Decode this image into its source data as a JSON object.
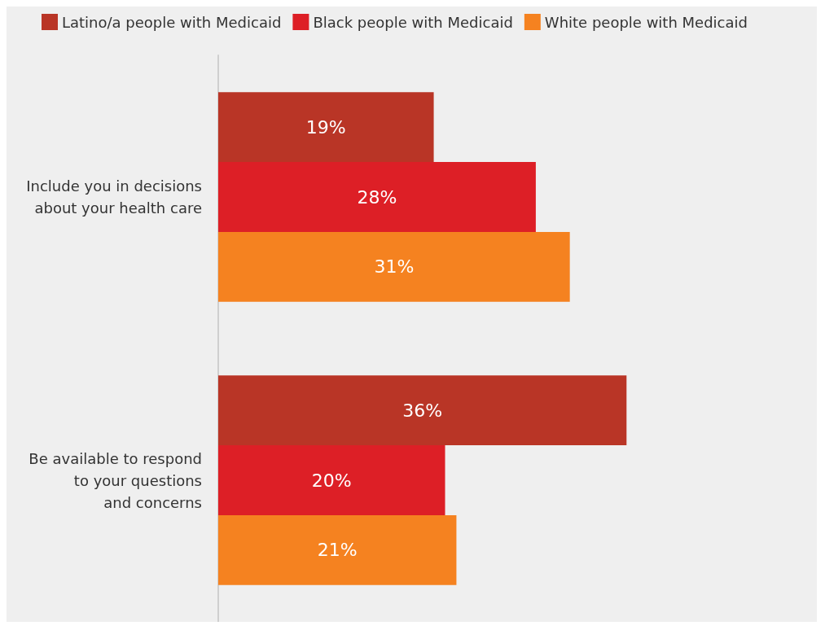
{
  "chart_data": {
    "type": "bar",
    "orientation": "horizontal",
    "categories": [
      "Include you in decisions\nabout your health care",
      "Be available to respond\nto your questions\nand concerns"
    ],
    "series": [
      {
        "name": "Latino/a people with Medicaid",
        "color": "#b93526",
        "values": [
          19,
          36
        ],
        "value_labels": [
          "19%",
          "36%"
        ]
      },
      {
        "name": "Black people with Medicaid",
        "color": "#dd1f26",
        "values": [
          28,
          20
        ],
        "value_labels": [
          "28%",
          "20%"
        ]
      },
      {
        "name": "White people with Medicaid",
        "color": "#f58220",
        "values": [
          31,
          21
        ],
        "value_labels": [
          "31%",
          "21%"
        ]
      }
    ],
    "legend": "top",
    "grid": false
  }
}
